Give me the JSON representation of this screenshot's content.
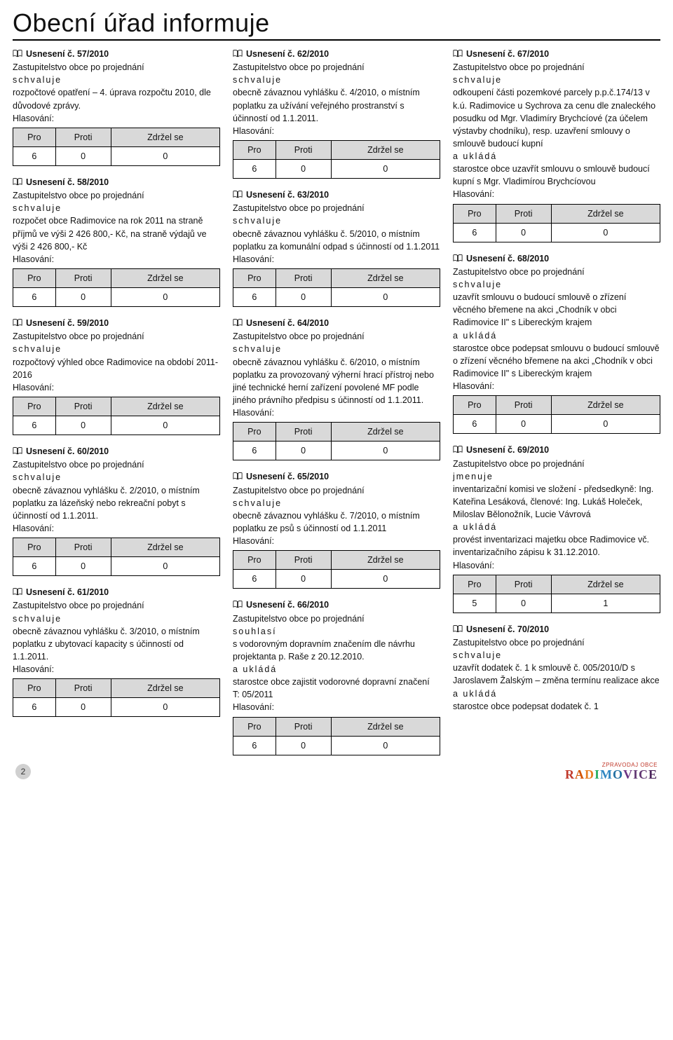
{
  "page_title": "Obecní úřad informuje",
  "page_number": "2",
  "footer": {
    "small": "ZPRAVODAJ OBCE",
    "big": "RADIMOVICE"
  },
  "vote_header": {
    "pro": "Pro",
    "proti": "Proti",
    "zdrzel": "Zdržel se"
  },
  "resolutions": [
    {
      "title": "Usnesení č. 57/2010",
      "lines": [
        "Zastupitelstvo obce po projednání",
        {
          "spaced": "schvaluje"
        },
        "rozpočtové opatření – 4. úprava rozpočtu 2010, dle důvodové zprávy.",
        "Hlasování:"
      ],
      "vote": [
        "6",
        "0",
        "0"
      ]
    },
    {
      "title": "Usnesení č. 58/2010",
      "lines": [
        "Zastupitelstvo obce po projednání",
        {
          "spaced": "schvaluje"
        },
        "rozpočet obce Radimovice na rok 2011 na straně příjmů ve výši 2 426 800,- Kč, na straně výdajů ve výši 2 426 800,- Kč",
        "Hlasování:"
      ],
      "vote": [
        "6",
        "0",
        "0"
      ]
    },
    {
      "title": "Usnesení č. 59/2010",
      "lines": [
        "Zastupitelstvo obce po projednání",
        {
          "spaced": "schvaluje"
        },
        "rozpočtový výhled obce Radimovice na období 2011-2016",
        "Hlasování:"
      ],
      "vote": [
        "6",
        "0",
        "0"
      ]
    },
    {
      "title": "Usnesení č. 60/2010",
      "lines": [
        "Zastupitelstvo obce po projednání",
        {
          "spaced": "schvaluje"
        },
        "obecně závaznou vyhlášku č. 2/2010, o místním poplatku za lázeňský nebo rekreační pobyt s účinností od 1.1.2011.",
        "Hlasování:"
      ],
      "vote": [
        "6",
        "0",
        "0"
      ]
    },
    {
      "title": "Usnesení č. 61/2010",
      "lines": [
        "Zastupitelstvo obce po projednání",
        {
          "spaced": "schvaluje"
        },
        "obecně závaznou vyhlášku č. 3/2010, o místním poplatku z ubytovací kapacity s účinností od 1.1.2011.",
        "Hlasování:"
      ],
      "vote": [
        "6",
        "0",
        "0"
      ]
    },
    {
      "title": "Usnesení č. 62/2010",
      "lines": [
        "Zastupitelstvo obce po projednání",
        {
          "spaced": "schvaluje"
        },
        "obecně závaznou vyhlášku č. 4/2010, o místním poplatku za užívání veřejného prostranství s účinností od 1.1.2011.",
        "Hlasování:"
      ],
      "vote": [
        "6",
        "0",
        "0"
      ]
    },
    {
      "title": "Usnesení č. 63/2010",
      "lines": [
        "Zastupitelstvo obce po projednání",
        {
          "spaced": "schvaluje"
        },
        "obecně závaznou vyhlášku č. 5/2010, o místním poplatku za komunální odpad s účinností od 1.1.2011",
        "Hlasování:"
      ],
      "vote": [
        "6",
        "0",
        "0"
      ]
    },
    {
      "title": "Usnesení č. 64/2010",
      "lines": [
        "Zastupitelstvo obce po projednání",
        {
          "spaced": "schvaluje"
        },
        "obecně závaznou vyhlášku č. 6/2010, o místním poplatku za provozovaný výherní hrací přístroj nebo jiné technické herní zařízení povolené MF podle jiného právního předpisu s účinností od 1.1.2011.",
        "Hlasování:"
      ],
      "vote": [
        "6",
        "0",
        "0"
      ]
    },
    {
      "title": "Usnesení č. 65/2010",
      "lines": [
        "Zastupitelstvo obce po projednání",
        {
          "spaced": "schvaluje"
        },
        "obecně závaznou vyhlášku č. 7/2010, o místním poplatku ze psů s účinností od 1.1.2011",
        "Hlasování:"
      ],
      "vote": [
        "6",
        "0",
        "0"
      ]
    },
    {
      "title": "Usnesení č. 66/2010",
      "lines": [
        "Zastupitelstvo obce po projednání",
        {
          "spaced": "souhlasí"
        },
        "s vodorovným dopravním značením dle návrhu projektanta p. Raše z 20.12.2010.",
        {
          "spaced": "a ukládá"
        },
        "starostce obce zajistit vodorovné dopravní značení",
        "T: 05/2011",
        "Hlasování:"
      ],
      "vote": [
        "6",
        "0",
        "0"
      ]
    },
    {
      "title": "Usnesení č. 67/2010",
      "lines": [
        "Zastupitelstvo obce po projednání",
        {
          "spaced": "schvaluje"
        },
        "odkoupení části pozemkové parcely p.p.č.174/13 v k.ú. Radimovice u Sychrova za cenu dle znaleckého posudku od Mgr. Vladimíry Brychcíové (za účelem výstavby chodníku), resp. uzavření smlouvy o smlouvě budoucí kupní",
        {
          "spaced": "a ukládá"
        },
        "starostce obce uzavřít smlouvu o smlouvě budoucí kupní s Mgr. Vladimírou Brychcíovou",
        "Hlasování:"
      ],
      "vote": [
        "6",
        "0",
        "0"
      ]
    },
    {
      "title": "Usnesení č. 68/2010",
      "lines": [
        "Zastupitelstvo obce po projednání",
        {
          "spaced": "schvaluje"
        },
        "uzavřít smlouvu o budoucí smlouvě o zřízení věcného břemene na akci „Chodník v obci Radimovice II\" s Libereckým krajem",
        {
          "spaced": "a ukládá"
        },
        "starostce obce podepsat smlouvu o budoucí smlouvě o zřízení věcného břemene na akci „Chodník v obci Radimovice II\" s Libereckým krajem",
        "Hlasování:"
      ],
      "vote": [
        "6",
        "0",
        "0"
      ]
    },
    {
      "title": "Usnesení č. 69/2010",
      "lines": [
        "Zastupitelstvo obce po projednání",
        {
          "spaced": "jmenuje"
        },
        "inventarizační komisi ve složení - předsedkyně: Ing. Kateřina Lesáková, členové: Ing. Lukáš Holeček, Miloslav Bělonožník, Lucie Vávrová",
        {
          "spaced": "a ukládá"
        },
        "provést inventarizaci majetku obce Radimovice vč. inventarizačního zápisu k 31.12.2010.",
        "Hlasování:"
      ],
      "vote": [
        "5",
        "0",
        "1"
      ]
    },
    {
      "title": "Usnesení č. 70/2010",
      "lines": [
        "Zastupitelstvo obce po projednání",
        {
          "spaced": "schvaluje"
        },
        "uzavřít dodatek č. 1 k smlouvě č. 005/2010/D s Jaroslavem Žalským – změna termínu realizace akce",
        {
          "spaced": "a ukládá"
        },
        "starostce obce podepsat dodatek č. 1"
      ]
    }
  ]
}
